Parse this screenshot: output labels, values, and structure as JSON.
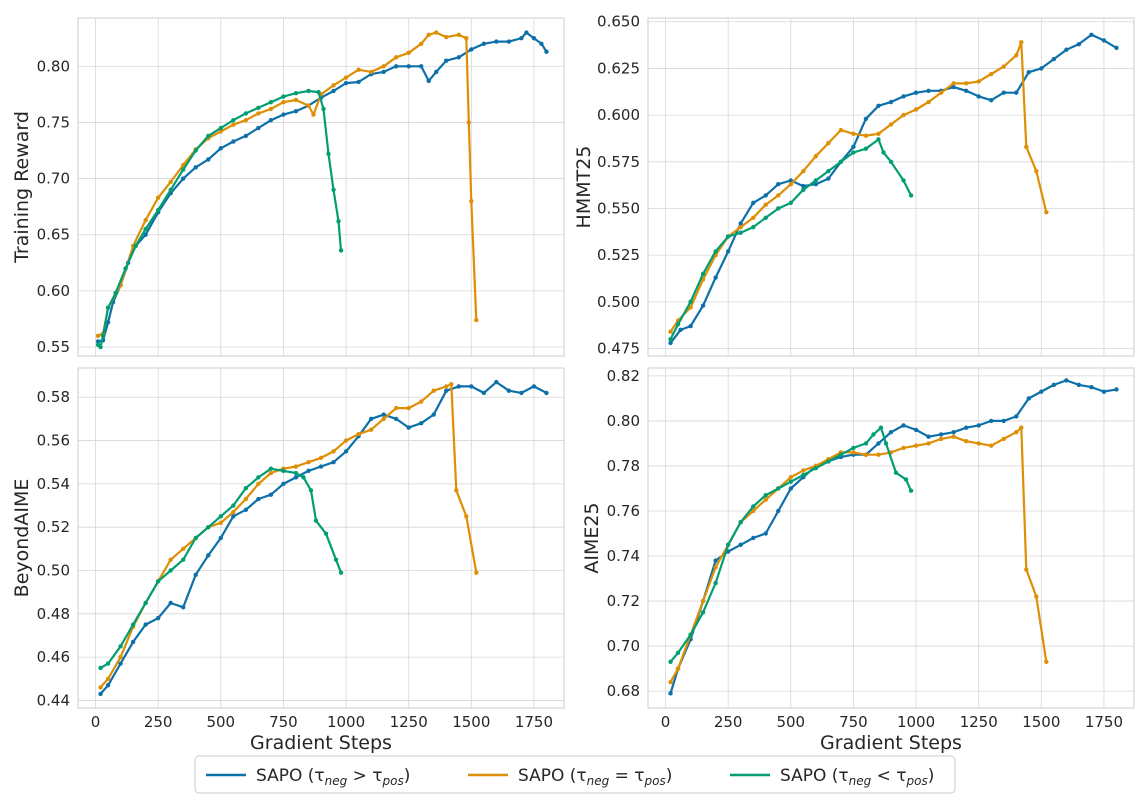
{
  "colors": {
    "blue": "#0d70a8",
    "orange": "#de8f05",
    "green": "#029e73",
    "grid": "#d7d7d7",
    "frame": "#cccccc"
  },
  "legend": {
    "entries": [
      {
        "label": "SAPO (τneg > τpos)",
        "color": "blue"
      },
      {
        "label": "SAPO (τneg = τpos)",
        "color": "orange"
      },
      {
        "label": "SAPO (τneg < τpos)",
        "color": "green"
      }
    ]
  },
  "chart_data": [
    {
      "type": "line",
      "ylabel": "Training Reward",
      "xlabel": "",
      "xlim": [
        -70,
        1870
      ],
      "ylim": [
        0.542,
        0.843
      ],
      "xticks": [
        0,
        250,
        500,
        750,
        1000,
        1250,
        1500,
        1750
      ],
      "yticks": [
        0.55,
        0.6,
        0.65,
        0.7,
        0.75,
        0.8
      ],
      "ytick_labels": [
        "0.55",
        "0.60",
        "0.65",
        "0.70",
        "0.75",
        "0.80"
      ],
      "show_xtick_labels": false,
      "grid": true,
      "series": [
        {
          "name": "SAPO (τneg > τpos)",
          "color": "blue",
          "x": [
            10,
            30,
            50,
            70,
            100,
            130,
            160,
            200,
            250,
            300,
            350,
            400,
            450,
            500,
            550,
            600,
            650,
            700,
            750,
            800,
            850,
            900,
            950,
            1000,
            1050,
            1100,
            1150,
            1200,
            1250,
            1300,
            1330,
            1360,
            1400,
            1450,
            1500,
            1550,
            1600,
            1650,
            1700,
            1720,
            1750,
            1780,
            1800
          ],
          "y": [
            0.555,
            0.556,
            0.572,
            0.59,
            0.605,
            0.625,
            0.64,
            0.65,
            0.67,
            0.687,
            0.7,
            0.71,
            0.717,
            0.727,
            0.733,
            0.738,
            0.745,
            0.752,
            0.757,
            0.76,
            0.765,
            0.772,
            0.778,
            0.785,
            0.786,
            0.793,
            0.795,
            0.8,
            0.8,
            0.8,
            0.787,
            0.795,
            0.805,
            0.808,
            0.815,
            0.82,
            0.822,
            0.822,
            0.825,
            0.83,
            0.825,
            0.82,
            0.813
          ]
        },
        {
          "name": "SAPO (τneg = τpos)",
          "color": "orange",
          "x": [
            10,
            30,
            50,
            100,
            150,
            200,
            250,
            300,
            350,
            400,
            450,
            500,
            550,
            600,
            650,
            700,
            750,
            800,
            850,
            870,
            900,
            950,
            1000,
            1050,
            1100,
            1150,
            1200,
            1250,
            1300,
            1330,
            1360,
            1400,
            1450,
            1480,
            1490,
            1500,
            1520
          ],
          "y": [
            0.56,
            0.562,
            0.585,
            0.605,
            0.64,
            0.663,
            0.683,
            0.697,
            0.712,
            0.726,
            0.736,
            0.742,
            0.748,
            0.752,
            0.758,
            0.762,
            0.768,
            0.77,
            0.765,
            0.757,
            0.775,
            0.783,
            0.79,
            0.797,
            0.795,
            0.8,
            0.808,
            0.812,
            0.82,
            0.828,
            0.83,
            0.826,
            0.828,
            0.825,
            0.75,
            0.68,
            0.574
          ]
        },
        {
          "name": "SAPO (τneg < τpos)",
          "color": "green",
          "x": [
            10,
            20,
            30,
            50,
            80,
            120,
            160,
            200,
            250,
            300,
            350,
            400,
            450,
            500,
            550,
            600,
            650,
            700,
            750,
            800,
            850,
            890,
            910,
            930,
            950,
            970,
            980
          ],
          "y": [
            0.552,
            0.55,
            0.56,
            0.585,
            0.598,
            0.62,
            0.64,
            0.655,
            0.672,
            0.69,
            0.708,
            0.725,
            0.738,
            0.745,
            0.752,
            0.758,
            0.763,
            0.768,
            0.773,
            0.776,
            0.778,
            0.777,
            0.762,
            0.722,
            0.69,
            0.662,
            0.636
          ]
        }
      ]
    },
    {
      "type": "line",
      "ylabel": "HMMT25",
      "xlabel": "",
      "xlim": [
        -70,
        1870
      ],
      "ylim": [
        0.471,
        0.652
      ],
      "xticks": [
        0,
        250,
        500,
        750,
        1000,
        1250,
        1500,
        1750
      ],
      "yticks": [
        0.475,
        0.5,
        0.525,
        0.55,
        0.575,
        0.6,
        0.625,
        0.65
      ],
      "ytick_labels": [
        "0.475",
        "0.500",
        "0.525",
        "0.550",
        "0.575",
        "0.600",
        "0.625",
        "0.650"
      ],
      "show_xtick_labels": false,
      "grid": true,
      "series": [
        {
          "name": "SAPO (τneg > τpos)",
          "color": "blue",
          "x": [
            20,
            60,
            100,
            150,
            200,
            250,
            300,
            350,
            400,
            450,
            500,
            550,
            600,
            650,
            700,
            750,
            800,
            850,
            900,
            950,
            1000,
            1050,
            1100,
            1150,
            1200,
            1250,
            1300,
            1350,
            1400,
            1450,
            1500,
            1550,
            1600,
            1650,
            1700,
            1750,
            1800
          ],
          "y": [
            0.478,
            0.485,
            0.487,
            0.498,
            0.513,
            0.527,
            0.542,
            0.553,
            0.557,
            0.563,
            0.565,
            0.562,
            0.563,
            0.566,
            0.575,
            0.583,
            0.598,
            0.605,
            0.607,
            0.61,
            0.612,
            0.613,
            0.613,
            0.615,
            0.613,
            0.61,
            0.608,
            0.612,
            0.612,
            0.623,
            0.625,
            0.63,
            0.635,
            0.638,
            0.643,
            0.64,
            0.636
          ]
        },
        {
          "name": "SAPO (τneg = τpos)",
          "color": "orange",
          "x": [
            20,
            50,
            100,
            150,
            200,
            250,
            300,
            350,
            400,
            450,
            500,
            550,
            600,
            650,
            700,
            750,
            800,
            850,
            900,
            950,
            1000,
            1050,
            1100,
            1150,
            1200,
            1250,
            1300,
            1350,
            1400,
            1420,
            1440,
            1480,
            1520
          ],
          "y": [
            0.484,
            0.49,
            0.497,
            0.512,
            0.525,
            0.535,
            0.54,
            0.545,
            0.552,
            0.557,
            0.563,
            0.57,
            0.578,
            0.585,
            0.592,
            0.59,
            0.589,
            0.59,
            0.595,
            0.6,
            0.603,
            0.607,
            0.612,
            0.617,
            0.617,
            0.618,
            0.622,
            0.626,
            0.632,
            0.639,
            0.583,
            0.57,
            0.548
          ]
        },
        {
          "name": "SAPO (τneg < τpos)",
          "color": "green",
          "x": [
            20,
            50,
            100,
            150,
            200,
            250,
            300,
            350,
            400,
            450,
            500,
            550,
            600,
            650,
            700,
            750,
            800,
            850,
            870,
            900,
            950,
            980
          ],
          "y": [
            0.48,
            0.488,
            0.5,
            0.515,
            0.527,
            0.535,
            0.537,
            0.54,
            0.545,
            0.55,
            0.553,
            0.56,
            0.565,
            0.57,
            0.575,
            0.58,
            0.582,
            0.587,
            0.58,
            0.575,
            0.565,
            0.557
          ]
        }
      ]
    },
    {
      "type": "line",
      "ylabel": "BeyondAIME",
      "xlabel": "Gradient Steps",
      "xlim": [
        -70,
        1870
      ],
      "ylim": [
        0.4365,
        0.5935
      ],
      "xticks": [
        0,
        250,
        500,
        750,
        1000,
        1250,
        1500,
        1750
      ],
      "xtick_labels": [
        "0",
        "250",
        "500",
        "750",
        "1000",
        "1250",
        "1500",
        "1750"
      ],
      "yticks": [
        0.44,
        0.46,
        0.48,
        0.5,
        0.52,
        0.54,
        0.56,
        0.58
      ],
      "ytick_labels": [
        "0.44",
        "0.46",
        "0.48",
        "0.50",
        "0.52",
        "0.54",
        "0.56",
        "0.58"
      ],
      "show_xtick_labels": true,
      "grid": true,
      "series": [
        {
          "name": "SAPO (τneg > τpos)",
          "color": "blue",
          "x": [
            20,
            50,
            100,
            150,
            200,
            250,
            300,
            350,
            400,
            450,
            500,
            550,
            600,
            650,
            700,
            750,
            800,
            850,
            900,
            950,
            1000,
            1050,
            1100,
            1150,
            1200,
            1250,
            1300,
            1350,
            1400,
            1450,
            1500,
            1550,
            1600,
            1650,
            1700,
            1750,
            1800
          ],
          "y": [
            0.443,
            0.447,
            0.457,
            0.467,
            0.475,
            0.478,
            0.485,
            0.483,
            0.498,
            0.507,
            0.515,
            0.525,
            0.528,
            0.533,
            0.535,
            0.54,
            0.543,
            0.546,
            0.548,
            0.55,
            0.555,
            0.562,
            0.57,
            0.572,
            0.57,
            0.566,
            0.568,
            0.572,
            0.583,
            0.585,
            0.585,
            0.582,
            0.587,
            0.583,
            0.582,
            0.585,
            0.582
          ]
        },
        {
          "name": "SAPO (τneg = τpos)",
          "color": "orange",
          "x": [
            20,
            50,
            100,
            150,
            200,
            250,
            300,
            350,
            400,
            450,
            500,
            550,
            600,
            650,
            700,
            750,
            800,
            850,
            900,
            950,
            1000,
            1050,
            1100,
            1150,
            1200,
            1250,
            1300,
            1350,
            1400,
            1420,
            1440,
            1480,
            1520
          ],
          "y": [
            0.446,
            0.45,
            0.46,
            0.474,
            0.485,
            0.495,
            0.505,
            0.51,
            0.515,
            0.52,
            0.522,
            0.527,
            0.533,
            0.54,
            0.545,
            0.547,
            0.548,
            0.55,
            0.552,
            0.555,
            0.56,
            0.563,
            0.565,
            0.57,
            0.575,
            0.575,
            0.578,
            0.583,
            0.585,
            0.586,
            0.537,
            0.525,
            0.499
          ]
        },
        {
          "name": "SAPO (τneg < τpos)",
          "color": "green",
          "x": [
            20,
            50,
            100,
            150,
            200,
            250,
            300,
            350,
            400,
            450,
            500,
            550,
            600,
            650,
            700,
            750,
            800,
            830,
            860,
            880,
            920,
            960,
            980
          ],
          "y": [
            0.455,
            0.457,
            0.465,
            0.475,
            0.485,
            0.495,
            0.5,
            0.505,
            0.515,
            0.52,
            0.525,
            0.53,
            0.538,
            0.543,
            0.547,
            0.546,
            0.545,
            0.543,
            0.537,
            0.523,
            0.517,
            0.505,
            0.499
          ]
        }
      ]
    },
    {
      "type": "line",
      "ylabel": "AIME25",
      "xlabel": "Gradient Steps",
      "xlim": [
        -70,
        1870
      ],
      "ylim": [
        0.6725,
        0.8235
      ],
      "xticks": [
        0,
        250,
        500,
        750,
        1000,
        1250,
        1500,
        1750
      ],
      "xtick_labels": [
        "0",
        "250",
        "500",
        "750",
        "1000",
        "1250",
        "1500",
        "1750"
      ],
      "yticks": [
        0.68,
        0.7,
        0.72,
        0.74,
        0.76,
        0.78,
        0.8,
        0.82
      ],
      "ytick_labels": [
        "0.68",
        "0.70",
        "0.72",
        "0.74",
        "0.76",
        "0.78",
        "0.80",
        "0.82"
      ],
      "show_xtick_labels": true,
      "grid": true,
      "series": [
        {
          "name": "SAPO (τneg > τpos)",
          "color": "blue",
          "x": [
            20,
            50,
            100,
            150,
            200,
            250,
            300,
            350,
            400,
            450,
            500,
            550,
            600,
            650,
            700,
            750,
            800,
            850,
            900,
            950,
            1000,
            1050,
            1100,
            1150,
            1200,
            1250,
            1300,
            1350,
            1400,
            1450,
            1500,
            1550,
            1600,
            1650,
            1700,
            1750,
            1800
          ],
          "y": [
            0.679,
            0.69,
            0.703,
            0.72,
            0.738,
            0.742,
            0.745,
            0.748,
            0.75,
            0.76,
            0.77,
            0.775,
            0.78,
            0.782,
            0.784,
            0.785,
            0.785,
            0.79,
            0.795,
            0.798,
            0.796,
            0.793,
            0.794,
            0.795,
            0.797,
            0.798,
            0.8,
            0.8,
            0.802,
            0.81,
            0.813,
            0.816,
            0.818,
            0.816,
            0.815,
            0.813,
            0.814
          ]
        },
        {
          "name": "SAPO (τneg = τpos)",
          "color": "orange",
          "x": [
            20,
            50,
            100,
            150,
            200,
            250,
            300,
            350,
            400,
            450,
            500,
            550,
            600,
            650,
            700,
            750,
            800,
            850,
            900,
            950,
            1000,
            1050,
            1100,
            1150,
            1200,
            1250,
            1300,
            1350,
            1400,
            1420,
            1440,
            1480,
            1520
          ],
          "y": [
            0.684,
            0.69,
            0.705,
            0.72,
            0.735,
            0.745,
            0.755,
            0.76,
            0.765,
            0.77,
            0.775,
            0.778,
            0.78,
            0.783,
            0.786,
            0.786,
            0.785,
            0.785,
            0.786,
            0.788,
            0.789,
            0.79,
            0.792,
            0.793,
            0.791,
            0.79,
            0.789,
            0.792,
            0.795,
            0.797,
            0.734,
            0.722,
            0.693
          ]
        },
        {
          "name": "SAPO (τneg < τpos)",
          "color": "green",
          "x": [
            20,
            50,
            100,
            150,
            200,
            250,
            300,
            350,
            400,
            450,
            500,
            550,
            600,
            650,
            700,
            750,
            800,
            830,
            860,
            880,
            920,
            960,
            980
          ],
          "y": [
            0.693,
            0.697,
            0.705,
            0.715,
            0.728,
            0.745,
            0.755,
            0.762,
            0.767,
            0.77,
            0.773,
            0.776,
            0.779,
            0.782,
            0.785,
            0.788,
            0.79,
            0.794,
            0.797,
            0.79,
            0.777,
            0.774,
            0.769
          ]
        }
      ]
    }
  ]
}
